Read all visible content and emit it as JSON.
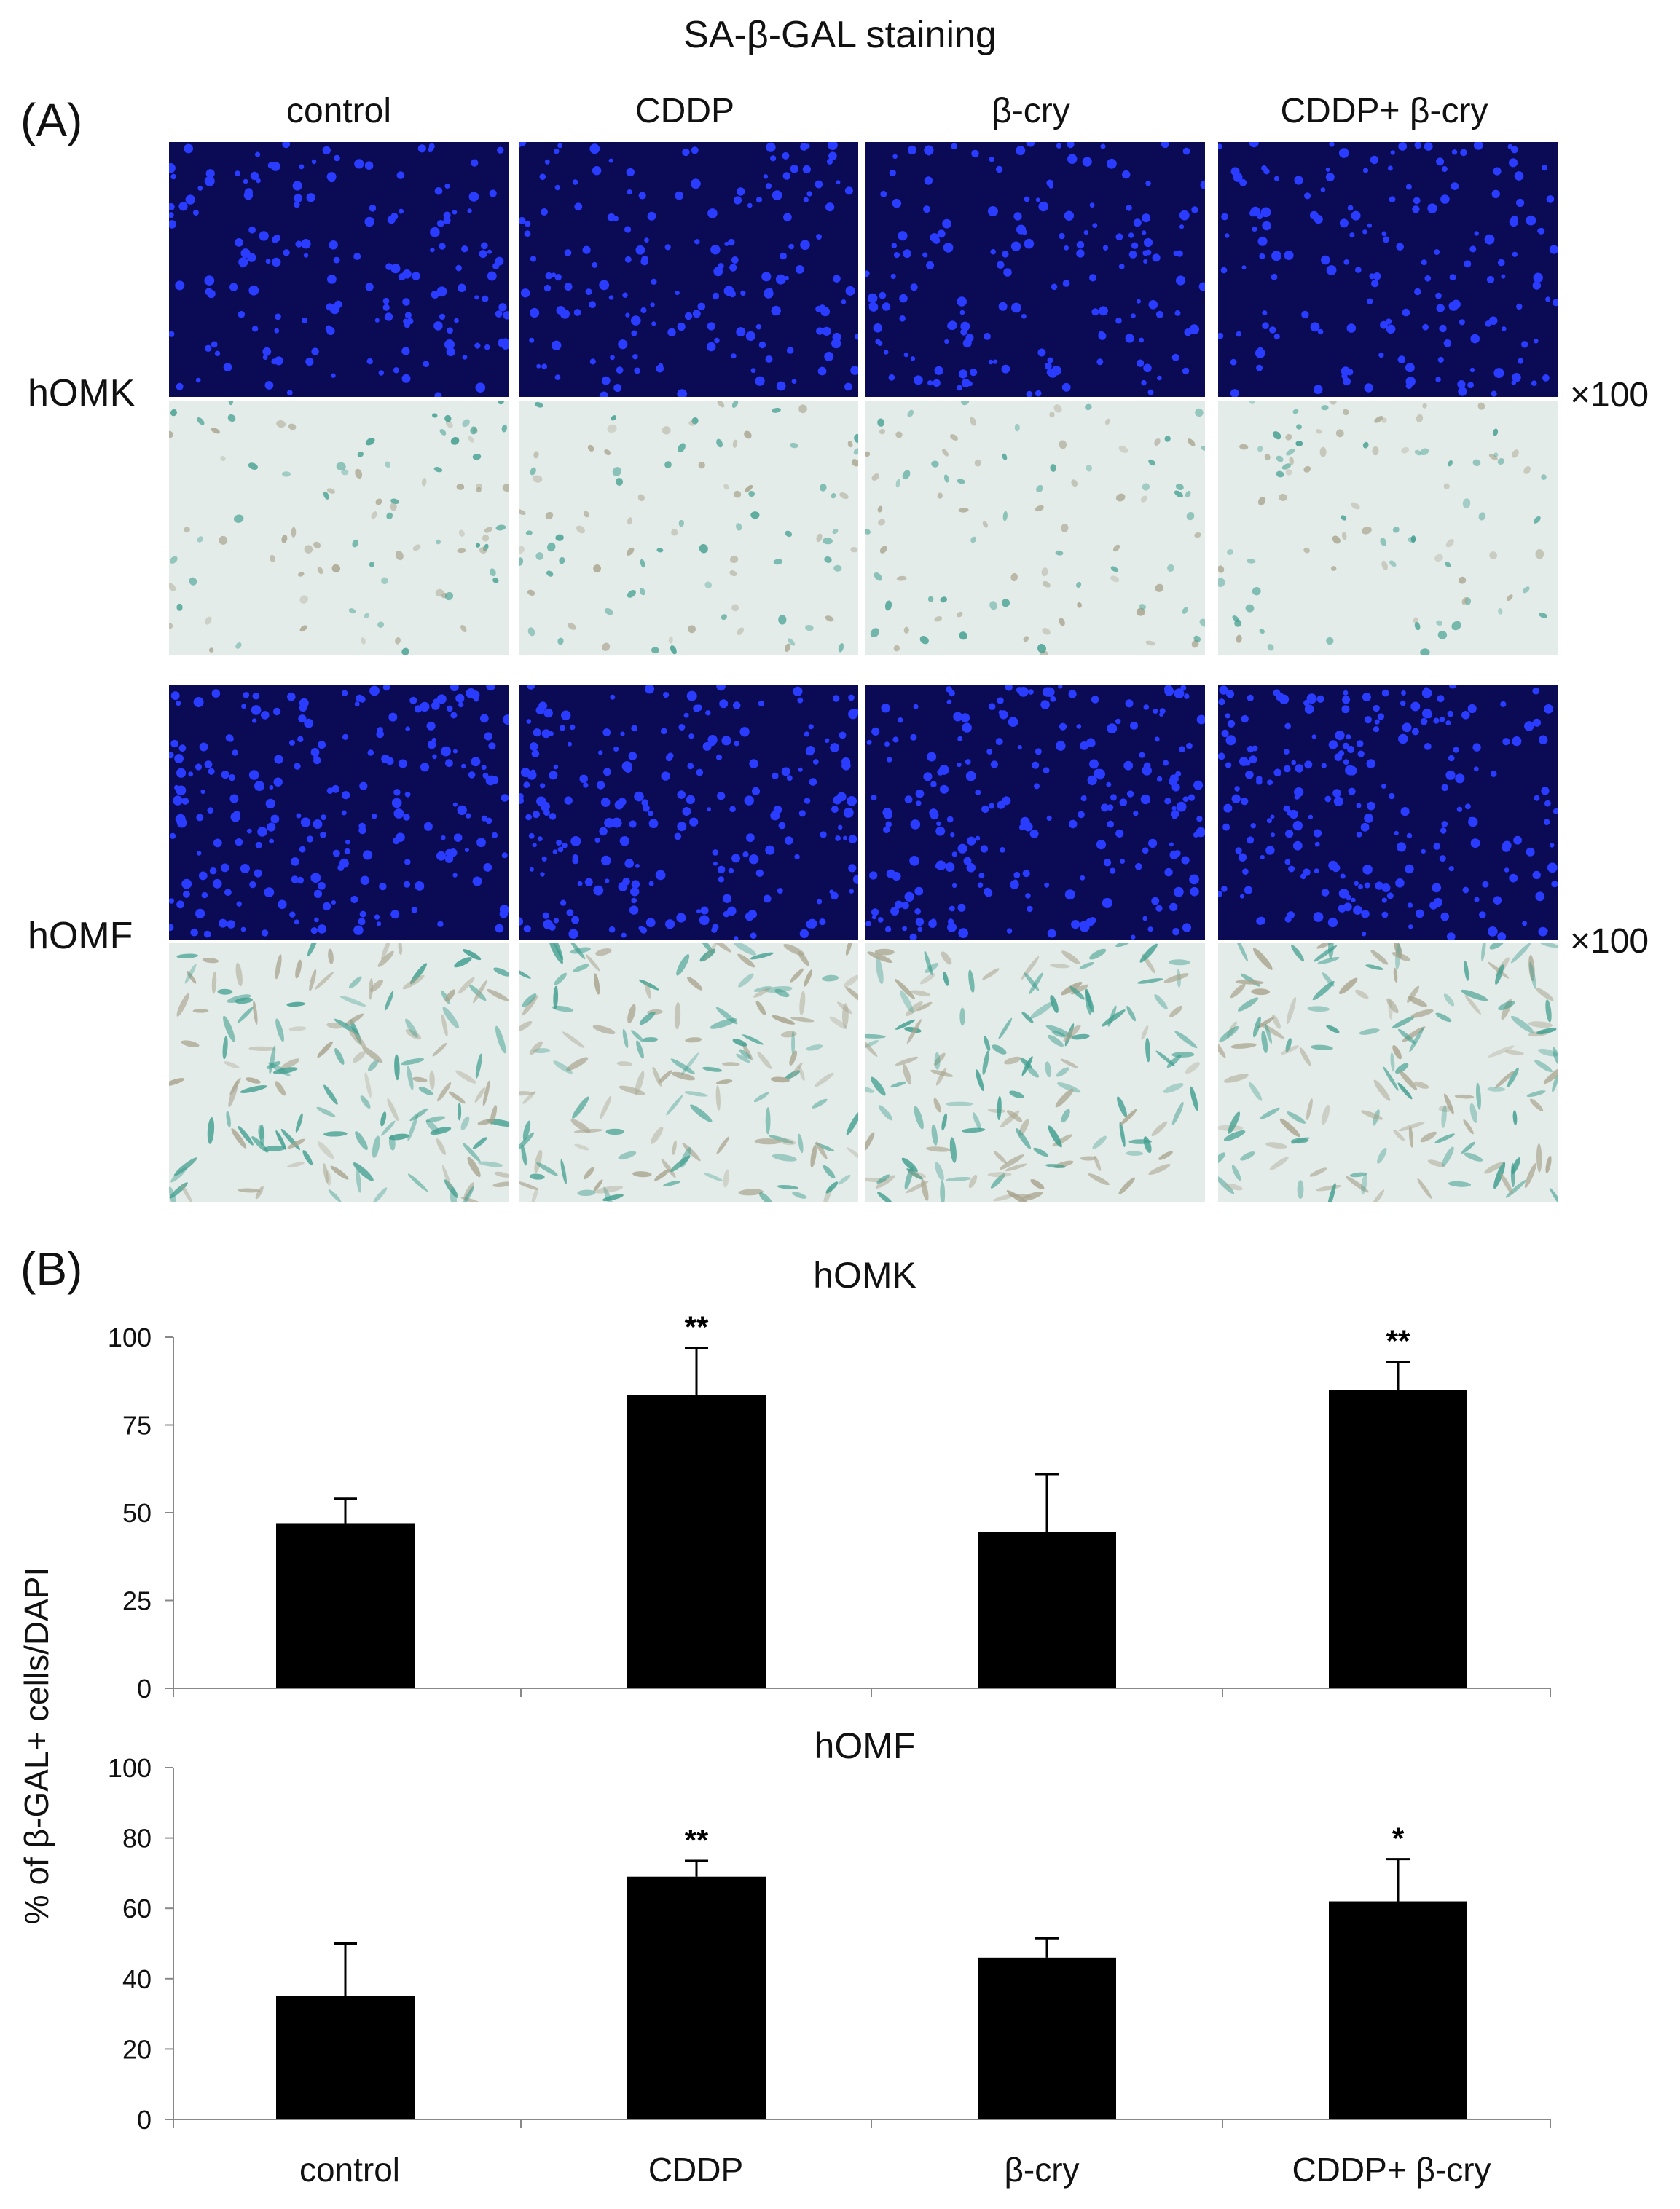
{
  "figure_title": "SA-β-GAL staining",
  "panel_a_label": "(A)",
  "panel_b_label": "(B)",
  "columns": [
    "control",
    "CDDP",
    "β-cry",
    "CDDP+ β-cry"
  ],
  "rows": [
    {
      "label": "hOMK",
      "magnification": "×100"
    },
    {
      "label": "hOMF",
      "magnification": "×100"
    }
  ],
  "y_axis_label": "% of β-GAL+ cells/DAPI",
  "colors": {
    "dapi_bg": "#0a0a55",
    "dapi_nuclei": "#2a3cff",
    "sa_bg": "#e4ecea",
    "sa_stain": "#3f9e8e",
    "bar": "#000000"
  },
  "chart_data": [
    {
      "type": "bar",
      "title": "hOMK",
      "categories": [
        "control",
        "CDDP",
        "β-cry",
        "CDDP+ β-cry"
      ],
      "values": [
        47,
        83.5,
        44.5,
        85
      ],
      "error": [
        7,
        13.5,
        16.5,
        8
      ],
      "significance": [
        "",
        "**",
        "",
        "**"
      ],
      "ylim": [
        0,
        100
      ],
      "yticks": [
        0,
        25,
        50,
        75,
        100
      ]
    },
    {
      "type": "bar",
      "title": "hOMF",
      "categories": [
        "control",
        "CDDP",
        "β-cry",
        "CDDP+ β-cry"
      ],
      "values": [
        35,
        69,
        46,
        62
      ],
      "error": [
        15,
        4.5,
        5.5,
        12
      ],
      "significance": [
        "",
        "**",
        "",
        "*"
      ],
      "ylim": [
        0,
        100
      ],
      "yticks": [
        0,
        20,
        40,
        60,
        80,
        100
      ]
    }
  ]
}
